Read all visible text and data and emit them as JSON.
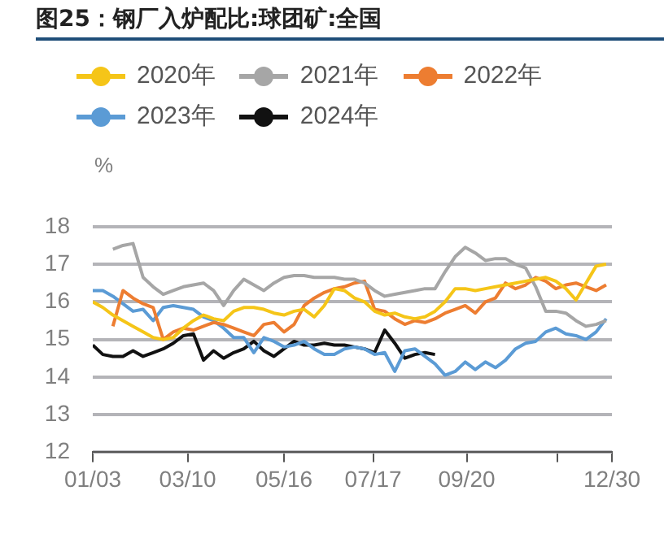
{
  "chart_data": {
    "type": "line",
    "title": "图25：钢厂入炉配比:球团矿:全国",
    "ylabel": "%",
    "x": [
      "--01-03",
      "--01-10",
      "--01-17",
      "--01-24",
      "--01-31",
      "--02-07",
      "--02-14",
      "--02-21",
      "--02-28",
      "--03-07",
      "--03-14",
      "--03-21",
      "--03-28",
      "--04-04",
      "--04-11",
      "--04-18",
      "--04-25",
      "--05-02",
      "--05-09",
      "--05-16",
      "--05-23",
      "--05-30",
      "--06-06",
      "--06-13",
      "--06-20",
      "--06-27",
      "--07-04",
      "--07-11",
      "--07-18",
      "--07-25",
      "--08-01",
      "--08-08",
      "--08-15",
      "--08-22",
      "--08-29",
      "--09-05",
      "--09-12",
      "--09-19",
      "--09-26",
      "--10-03",
      "--10-10",
      "--10-17",
      "--10-24",
      "--10-31",
      "--11-07",
      "--11-14",
      "--11-21",
      "--11-28",
      "--12-05",
      "--12-12",
      "--12-19",
      "--12-26"
    ],
    "series": [
      {
        "name": "2020年",
        "color": "#f5c518",
        "values": [
          16.0,
          15.85,
          15.65,
          15.5,
          15.35,
          15.2,
          15.05,
          15.0,
          15.05,
          15.3,
          15.5,
          15.65,
          15.55,
          15.5,
          15.75,
          15.85,
          15.85,
          15.8,
          15.7,
          15.65,
          15.75,
          15.8,
          15.6,
          15.9,
          16.35,
          16.3,
          16.1,
          16.0,
          15.75,
          15.65,
          15.7,
          15.6,
          15.55,
          15.6,
          15.75,
          16.0,
          16.35,
          16.35,
          16.3,
          16.35,
          16.4,
          16.45,
          16.5,
          16.55,
          16.6,
          16.65,
          16.55,
          16.35,
          16.05,
          16.5,
          16.95,
          17.0
        ]
      },
      {
        "name": "2021年",
        "color": "#a6a6a6",
        "values": [
          null,
          null,
          17.4,
          17.5,
          17.55,
          16.65,
          16.4,
          16.2,
          16.3,
          16.4,
          16.45,
          16.5,
          16.3,
          15.9,
          16.3,
          16.6,
          16.45,
          16.3,
          16.5,
          16.65,
          16.7,
          16.7,
          16.65,
          16.65,
          16.65,
          16.6,
          16.6,
          16.5,
          16.3,
          16.15,
          16.2,
          16.25,
          16.3,
          16.35,
          16.35,
          16.8,
          17.2,
          17.45,
          17.3,
          17.1,
          17.15,
          17.15,
          17.0,
          16.9,
          16.4,
          15.75,
          15.75,
          15.7,
          15.5,
          15.35,
          15.4,
          15.5
        ]
      },
      {
        "name": "2022年",
        "color": "#ed7d31",
        "values": [
          null,
          null,
          15.35,
          16.3,
          16.1,
          15.95,
          15.85,
          15.0,
          15.2,
          15.3,
          15.25,
          15.35,
          15.45,
          15.4,
          15.3,
          15.2,
          15.1,
          15.4,
          15.45,
          15.2,
          15.4,
          15.9,
          16.1,
          16.25,
          16.35,
          16.4,
          16.5,
          16.55,
          15.8,
          15.75,
          15.55,
          15.4,
          15.5,
          15.45,
          15.55,
          15.7,
          15.8,
          15.9,
          15.7,
          16.0,
          16.1,
          16.5,
          16.35,
          16.45,
          16.65,
          16.55,
          16.35,
          16.45,
          16.5,
          16.4,
          16.3,
          16.45
        ]
      },
      {
        "name": "2023年",
        "color": "#5b9bd5",
        "values": [
          16.3,
          16.3,
          16.15,
          15.95,
          15.75,
          15.8,
          15.5,
          15.85,
          15.9,
          15.85,
          15.8,
          15.6,
          15.5,
          15.3,
          15.05,
          15.05,
          14.65,
          15.05,
          14.95,
          14.8,
          14.85,
          14.95,
          14.75,
          14.6,
          14.6,
          14.75,
          14.8,
          14.75,
          14.6,
          14.65,
          14.15,
          14.7,
          14.75,
          14.55,
          14.35,
          14.05,
          14.15,
          14.4,
          14.2,
          14.4,
          14.25,
          14.45,
          14.75,
          14.9,
          14.95,
          15.2,
          15.3,
          15.15,
          15.1,
          15.0,
          15.2,
          15.55
        ]
      },
      {
        "name": "2024年",
        "color": "#111111",
        "x": [
          "--01-03",
          "--01-10",
          "--01-17",
          "--01-24",
          "--01-31",
          "--02-07",
          "--02-14",
          "--02-21",
          "--02-28",
          "--03-07",
          "--03-14",
          "--03-21",
          "--03-28",
          "--04-04",
          "--04-11",
          "--04-18",
          "--04-25",
          "--05-02",
          "--05-09",
          "--05-16",
          "--05-23",
          "--05-30",
          "--06-06",
          "--06-13",
          "--06-20",
          "--06-27",
          "--07-04",
          "--07-11",
          "--07-18",
          "--07-25",
          "--08-01",
          "--08-08",
          "--08-15",
          "--08-22",
          "--08-29"
        ],
        "values": [
          14.85,
          14.6,
          14.55,
          14.55,
          14.7,
          14.55,
          14.65,
          14.75,
          14.9,
          15.1,
          15.15,
          14.45,
          14.7,
          14.5,
          14.65,
          14.75,
          14.95,
          14.7,
          14.55,
          14.75,
          14.95,
          14.85,
          14.85,
          14.9,
          14.85,
          14.85,
          14.8,
          14.75,
          14.65,
          15.25,
          14.9,
          14.5,
          14.6,
          14.65,
          14.6
        ]
      }
    ],
    "xlim": [
      "--01-03",
      "--12-30"
    ],
    "xticks": [
      {
        "value": "--01-03",
        "label": "01/03"
      },
      {
        "value": "--03-10",
        "label": "03/10"
      },
      {
        "value": "--05-16",
        "label": "05/16"
      },
      {
        "value": "--07-17",
        "label": "07/17"
      },
      {
        "value": "--09-20",
        "label": "09/20"
      },
      {
        "value": "--11-22",
        "label": null
      },
      {
        "value": "--12-30",
        "label": "12/30"
      }
    ],
    "ylim": [
      12,
      18
    ],
    "yticks": [
      12,
      13,
      14,
      15,
      16,
      17,
      18
    ],
    "grid": "y",
    "legend": "top",
    "marker": "none",
    "line_style": "solid"
  }
}
